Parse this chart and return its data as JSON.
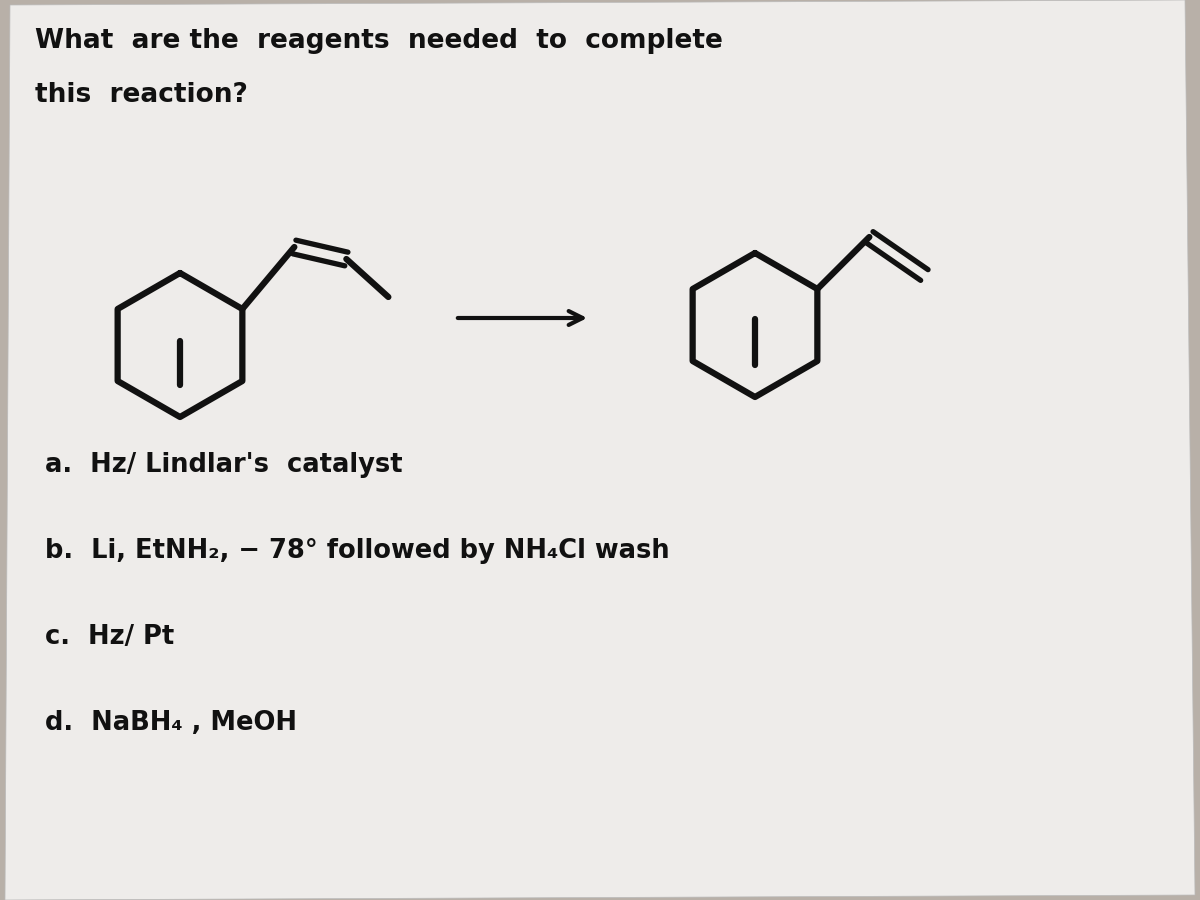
{
  "bg_color": "#b8b0a8",
  "paper_color": "#eeecea",
  "text_color": "#111111",
  "title_line1": "What are the reagents needed to complete",
  "title_line2": "this reaction?",
  "answer_a": "a.  Hz/ Lindlar's  catalyst",
  "answer_b": "b.  Li, EtNH₂, −78° followed by NH₄Cl wash",
  "answer_c": "c.  Hz/ Pt",
  "answer_d": "d.  NaBH₄ , MeOH",
  "lw": 4.5
}
